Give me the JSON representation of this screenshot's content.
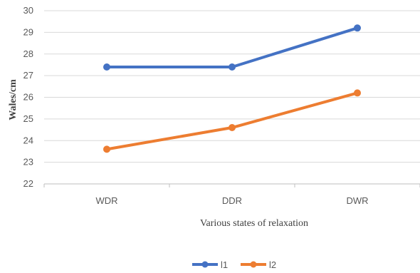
{
  "chart_data": {
    "type": "line",
    "title": "",
    "xlabel": "Various states of relaxation",
    "ylabel": "Wales/cm",
    "categories": [
      "WDR",
      "DDR",
      "DWR"
    ],
    "ylim": [
      22,
      30
    ],
    "yticks": [
      22,
      23,
      24,
      25,
      26,
      27,
      28,
      29,
      30
    ],
    "grid": true,
    "legend_position": "bottom",
    "series": [
      {
        "name": "l1",
        "values": [
          27.4,
          27.4,
          29.2
        ],
        "color": "#4472c4"
      },
      {
        "name": "l2",
        "values": [
          23.6,
          24.6,
          26.2
        ],
        "color": "#ed7d31"
      }
    ]
  }
}
